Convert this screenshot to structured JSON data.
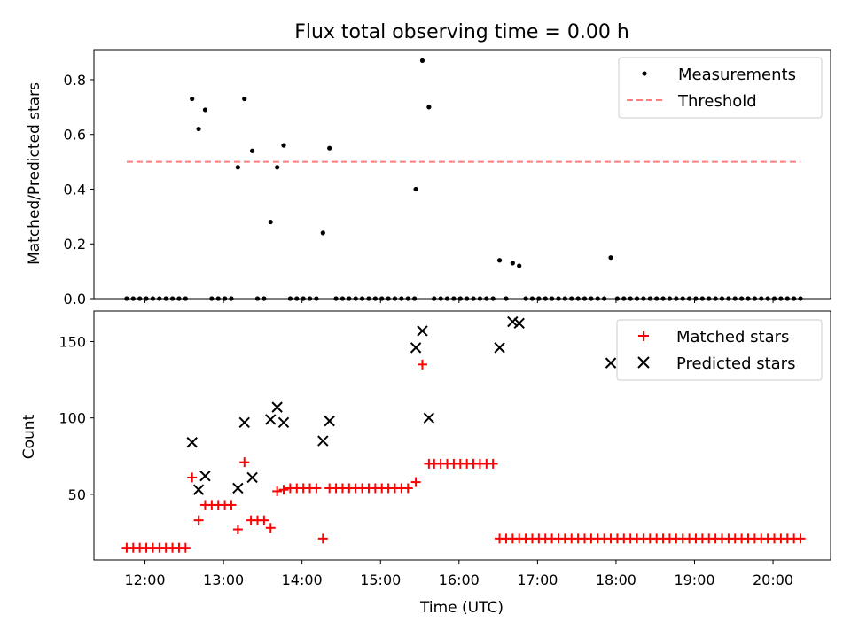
{
  "figure": {
    "title": "Flux total observing time = 0.00 h",
    "xlabel": "Time (UTC)"
  },
  "chart_data": [
    {
      "type": "scatter",
      "title": "Flux total observing time = 0.00 h",
      "xlabel": "",
      "ylabel": "Matched/Predicted stars",
      "ylim": [
        0,
        0.91
      ],
      "yticks": [
        "0.0",
        "0.2",
        "0.4",
        "0.6",
        "0.8"
      ],
      "xlim": [
        "11:21",
        "20:44"
      ],
      "xticks": [
        "12:00",
        "13:00",
        "14:00",
        "15:00",
        "16:00",
        "17:00",
        "18:00",
        "19:00",
        "20:00"
      ],
      "legend_position": "top-right",
      "grid": false,
      "series": [
        {
          "name": "Measurements",
          "kind": "scatter",
          "color": "#000000",
          "marker": "dot",
          "points": [
            [
              "11:46",
              0
            ],
            [
              "11:51",
              0
            ],
            [
              "11:56",
              0
            ],
            [
              "12:01",
              0
            ],
            [
              "12:06",
              0
            ],
            [
              "12:11",
              0
            ],
            [
              "12:16",
              0
            ],
            [
              "12:21",
              0
            ],
            [
              "12:26",
              0
            ],
            [
              "12:31",
              0
            ],
            [
              "12:36",
              0.73
            ],
            [
              "12:41",
              0.62
            ],
            [
              "12:46",
              0.69
            ],
            [
              "12:51",
              0
            ],
            [
              "12:56",
              0
            ],
            [
              "13:01",
              0
            ],
            [
              "13:06",
              0
            ],
            [
              "13:11",
              0.48
            ],
            [
              "13:16",
              0.73
            ],
            [
              "13:22",
              0.54
            ],
            [
              "13:26",
              0
            ],
            [
              "13:31",
              0
            ],
            [
              "13:36",
              0.28
            ],
            [
              "13:41",
              0.48
            ],
            [
              "13:46",
              0.56
            ],
            [
              "13:51",
              0
            ],
            [
              "13:56",
              0
            ],
            [
              "14:01",
              0
            ],
            [
              "14:06",
              0
            ],
            [
              "14:11",
              0
            ],
            [
              "14:16",
              0.24
            ],
            [
              "14:21",
              0.55
            ],
            [
              "14:26",
              0
            ],
            [
              "14:31",
              0
            ],
            [
              "14:36",
              0
            ],
            [
              "14:41",
              0
            ],
            [
              "14:46",
              0
            ],
            [
              "14:51",
              0
            ],
            [
              "14:56",
              0
            ],
            [
              "15:01",
              0
            ],
            [
              "15:06",
              0
            ],
            [
              "15:11",
              0
            ],
            [
              "15:16",
              0
            ],
            [
              "15:21",
              0
            ],
            [
              "15:26",
              0
            ],
            [
              "15:27",
              0.4
            ],
            [
              "15:32",
              0.87
            ],
            [
              "15:37",
              0.7
            ],
            [
              "15:41",
              0
            ],
            [
              "15:46",
              0
            ],
            [
              "15:51",
              0
            ],
            [
              "15:56",
              0
            ],
            [
              "16:01",
              0
            ],
            [
              "16:06",
              0
            ],
            [
              "16:11",
              0
            ],
            [
              "16:16",
              0
            ],
            [
              "16:21",
              0
            ],
            [
              "16:26",
              0
            ],
            [
              "16:31",
              0.14
            ],
            [
              "16:36",
              0
            ],
            [
              "16:41",
              0.13
            ],
            [
              "16:46",
              0.12
            ],
            [
              "16:51",
              0
            ],
            [
              "16:56",
              0
            ],
            [
              "17:01",
              0
            ],
            [
              "17:06",
              0
            ],
            [
              "17:11",
              0
            ],
            [
              "17:16",
              0
            ],
            [
              "17:21",
              0
            ],
            [
              "17:26",
              0
            ],
            [
              "17:31",
              0
            ],
            [
              "17:36",
              0
            ],
            [
              "17:41",
              0
            ],
            [
              "17:46",
              0
            ],
            [
              "17:51",
              0
            ],
            [
              "17:56",
              0.15
            ],
            [
              "18:01",
              0
            ],
            [
              "18:06",
              0
            ],
            [
              "18:11",
              0
            ],
            [
              "18:16",
              0
            ],
            [
              "18:21",
              0
            ],
            [
              "18:26",
              0
            ],
            [
              "18:31",
              0
            ],
            [
              "18:36",
              0
            ],
            [
              "18:41",
              0
            ],
            [
              "18:46",
              0
            ],
            [
              "18:51",
              0
            ],
            [
              "18:56",
              0
            ],
            [
              "19:01",
              0
            ],
            [
              "19:06",
              0
            ],
            [
              "19:11",
              0
            ],
            [
              "19:16",
              0
            ],
            [
              "19:21",
              0
            ],
            [
              "19:26",
              0
            ],
            [
              "19:31",
              0
            ],
            [
              "19:36",
              0
            ],
            [
              "19:41",
              0
            ],
            [
              "19:46",
              0
            ],
            [
              "19:51",
              0
            ],
            [
              "19:56",
              0
            ],
            [
              "20:01",
              0
            ],
            [
              "20:06",
              0
            ],
            [
              "20:11",
              0
            ],
            [
              "20:16",
              0
            ],
            [
              "20:21",
              0
            ]
          ]
        },
        {
          "name": "Threshold",
          "kind": "line",
          "color": "#ff7f7f",
          "dash": "dashed",
          "points": [
            [
              "11:46",
              0.5
            ],
            [
              "20:21",
              0.5
            ]
          ]
        }
      ]
    },
    {
      "type": "scatter",
      "title": "",
      "xlabel": "Time (UTC)",
      "ylabel": "Count",
      "ylim": [
        7,
        170
      ],
      "yticks": [
        "50",
        "100",
        "150"
      ],
      "xlim": [
        "11:21",
        "20:44"
      ],
      "xticks": [
        "12:00",
        "13:00",
        "14:00",
        "15:00",
        "16:00",
        "17:00",
        "18:00",
        "19:00",
        "20:00"
      ],
      "legend_position": "top-right",
      "grid": false,
      "series": [
        {
          "name": "Matched stars",
          "kind": "scatter",
          "color": "#ff0000",
          "marker": "plus",
          "points": [
            [
              "11:46",
              15
            ],
            [
              "11:51",
              15
            ],
            [
              "11:56",
              15
            ],
            [
              "12:01",
              15
            ],
            [
              "12:06",
              15
            ],
            [
              "12:11",
              15
            ],
            [
              "12:16",
              15
            ],
            [
              "12:21",
              15
            ],
            [
              "12:26",
              15
            ],
            [
              "12:31",
              15
            ],
            [
              "12:36",
              61
            ],
            [
              "12:41",
              33
            ],
            [
              "12:46",
              43
            ],
            [
              "12:51",
              43
            ],
            [
              "12:56",
              43
            ],
            [
              "13:01",
              43
            ],
            [
              "13:06",
              43
            ],
            [
              "13:11",
              27
            ],
            [
              "13:16",
              71
            ],
            [
              "13:21",
              33
            ],
            [
              "13:26",
              33
            ],
            [
              "13:31",
              33
            ],
            [
              "13:36",
              28
            ],
            [
              "13:41",
              52
            ],
            [
              "13:46",
              53
            ],
            [
              "13:51",
              54
            ],
            [
              "13:56",
              54
            ],
            [
              "14:01",
              54
            ],
            [
              "14:06",
              54
            ],
            [
              "14:11",
              54
            ],
            [
              "14:16",
              21
            ],
            [
              "14:21",
              54
            ],
            [
              "14:26",
              54
            ],
            [
              "14:31",
              54
            ],
            [
              "14:36",
              54
            ],
            [
              "14:41",
              54
            ],
            [
              "14:46",
              54
            ],
            [
              "14:51",
              54
            ],
            [
              "14:56",
              54
            ],
            [
              "15:01",
              54
            ],
            [
              "15:06",
              54
            ],
            [
              "15:11",
              54
            ],
            [
              "15:16",
              54
            ],
            [
              "15:21",
              54
            ],
            [
              "15:27",
              58
            ],
            [
              "15:32",
              135
            ],
            [
              "15:37",
              70
            ],
            [
              "15:41",
              70
            ],
            [
              "15:46",
              70
            ],
            [
              "15:51",
              70
            ],
            [
              "15:56",
              70
            ],
            [
              "16:01",
              70
            ],
            [
              "16:06",
              70
            ],
            [
              "16:11",
              70
            ],
            [
              "16:16",
              70
            ],
            [
              "16:21",
              70
            ],
            [
              "16:26",
              70
            ],
            [
              "16:31",
              21
            ],
            [
              "16:36",
              21
            ],
            [
              "16:41",
              21
            ],
            [
              "16:46",
              21
            ],
            [
              "16:51",
              21
            ],
            [
              "16:56",
              21
            ],
            [
              "17:01",
              21
            ],
            [
              "17:06",
              21
            ],
            [
              "17:11",
              21
            ],
            [
              "17:16",
              21
            ],
            [
              "17:21",
              21
            ],
            [
              "17:26",
              21
            ],
            [
              "17:31",
              21
            ],
            [
              "17:36",
              21
            ],
            [
              "17:41",
              21
            ],
            [
              "17:46",
              21
            ],
            [
              "17:51",
              21
            ],
            [
              "17:56",
              21
            ],
            [
              "18:01",
              21
            ],
            [
              "18:06",
              21
            ],
            [
              "18:11",
              21
            ],
            [
              "18:16",
              21
            ],
            [
              "18:21",
              21
            ],
            [
              "18:26",
              21
            ],
            [
              "18:31",
              21
            ],
            [
              "18:36",
              21
            ],
            [
              "18:41",
              21
            ],
            [
              "18:46",
              21
            ],
            [
              "18:51",
              21
            ],
            [
              "18:56",
              21
            ],
            [
              "19:01",
              21
            ],
            [
              "19:06",
              21
            ],
            [
              "19:11",
              21
            ],
            [
              "19:16",
              21
            ],
            [
              "19:21",
              21
            ],
            [
              "19:26",
              21
            ],
            [
              "19:31",
              21
            ],
            [
              "19:36",
              21
            ],
            [
              "19:41",
              21
            ],
            [
              "19:46",
              21
            ],
            [
              "19:51",
              21
            ],
            [
              "19:56",
              21
            ],
            [
              "20:01",
              21
            ],
            [
              "20:06",
              21
            ],
            [
              "20:11",
              21
            ],
            [
              "20:16",
              21
            ],
            [
              "20:21",
              21
            ]
          ]
        },
        {
          "name": "Predicted stars",
          "kind": "scatter",
          "color": "#000000",
          "marker": "x",
          "points": [
            [
              "12:36",
              84
            ],
            [
              "12:41",
              53
            ],
            [
              "12:46",
              62
            ],
            [
              "13:11",
              54
            ],
            [
              "13:16",
              97
            ],
            [
              "13:22",
              61
            ],
            [
              "13:36",
              99
            ],
            [
              "13:41",
              107
            ],
            [
              "13:46",
              97
            ],
            [
              "14:16",
              85
            ],
            [
              "14:21",
              98
            ],
            [
              "15:27",
              146
            ],
            [
              "15:32",
              157
            ],
            [
              "15:37",
              100
            ],
            [
              "16:31",
              146
            ],
            [
              "16:41",
              163
            ],
            [
              "16:46",
              162
            ],
            [
              "17:56",
              136
            ]
          ]
        }
      ]
    }
  ]
}
